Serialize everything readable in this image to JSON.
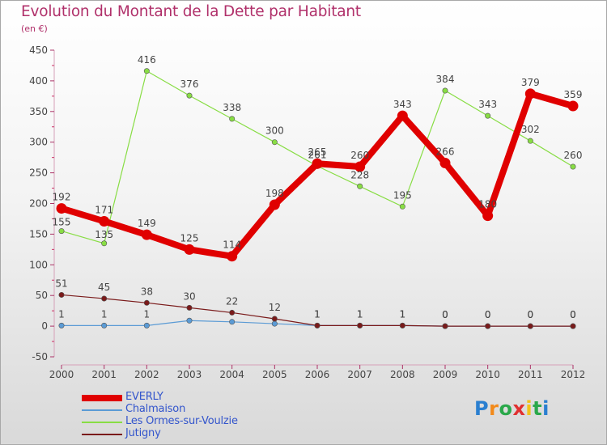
{
  "title": "Evolution du Montant de la Dette par Habitant",
  "subtitle": "(en €)",
  "logo": {
    "letters": [
      "P",
      "r",
      "o",
      "x",
      "i",
      "t",
      "i"
    ],
    "colors": [
      "#2a7fd0",
      "#f28a1a",
      "#2aa84a",
      "#e03030",
      "#f2c21a",
      "#2aa84a",
      "#2a7fd0"
    ]
  },
  "chart_data": {
    "type": "line",
    "x": [
      "2000",
      "2001",
      "2002",
      "2003",
      "2004",
      "2005",
      "2006",
      "2007",
      "2008",
      "2009",
      "2010",
      "2011",
      "2012"
    ],
    "ylim": [
      -50,
      450
    ],
    "yticks": [
      "-50",
      "0",
      "50",
      "100",
      "150",
      "200",
      "250",
      "300",
      "350",
      "400",
      "450"
    ],
    "grid": false,
    "legend_position": "bottom-left",
    "series": [
      {
        "name": "EVERLY",
        "color": "#e00000",
        "values": [
          192,
          171,
          149,
          125,
          114,
          198,
          265,
          260,
          343,
          266,
          180,
          379,
          359
        ],
        "labels": [
          "192",
          "171",
          "149",
          "125",
          "114",
          "198",
          "265",
          "260",
          "343",
          "266",
          "180",
          "379",
          "359"
        ]
      },
      {
        "name": "Chalmaison",
        "color": "#5b9bd5",
        "values": [
          1,
          1,
          1,
          9,
          7,
          4,
          1,
          1,
          1,
          0,
          0,
          0,
          0
        ],
        "labels": [
          "1",
          "1",
          "1",
          "",
          "",
          "",
          "1",
          "1",
          "1",
          "0",
          "0",
          "0",
          "0"
        ]
      },
      {
        "name": "Les Ormes-sur-Voulzie",
        "color": "#88dd44",
        "values": [
          155,
          135,
          416,
          376,
          338,
          300,
          261,
          228,
          195,
          384,
          343,
          302,
          260
        ],
        "labels": [
          "155",
          "135",
          "416",
          "376",
          "338",
          "300",
          "261",
          "228",
          "195",
          "384",
          "343",
          "302",
          "260"
        ]
      },
      {
        "name": "Jutigny",
        "color": "#7a1a1a",
        "values": [
          51,
          45,
          38,
          30,
          22,
          12,
          1,
          1,
          1,
          0,
          0,
          0,
          0
        ],
        "labels": [
          "51",
          "45",
          "38",
          "30",
          "22",
          "12",
          "1",
          "1",
          "1",
          "0",
          "0",
          "0",
          "0"
        ]
      }
    ]
  }
}
